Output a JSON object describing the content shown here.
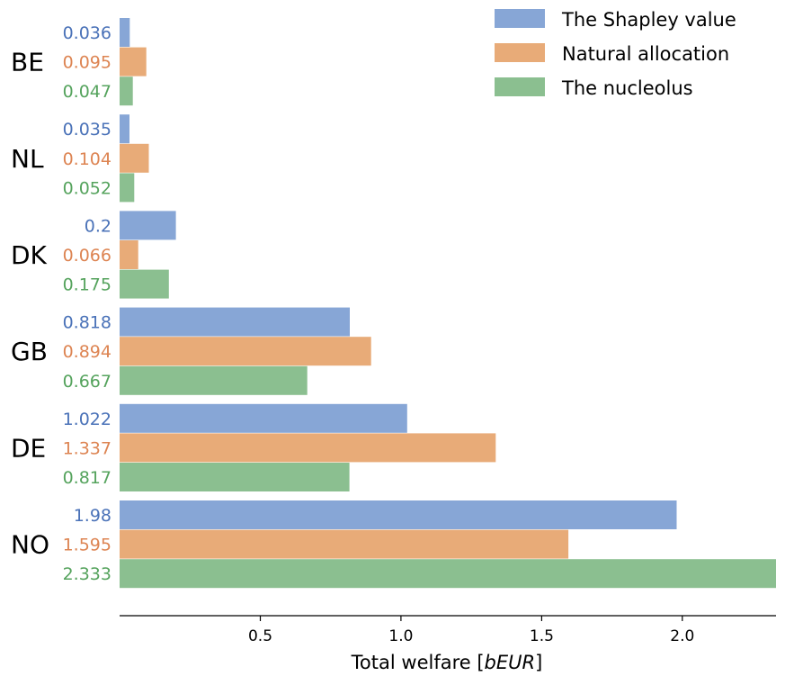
{
  "chart_data": {
    "type": "bar",
    "orientation": "horizontal",
    "categories": [
      "BE",
      "NL",
      "DK",
      "GB",
      "DE",
      "NO"
    ],
    "series": [
      {
        "name": "The Shapley value",
        "color": "#87a6d6",
        "label_color": "#4a72b8",
        "values": [
          0.036,
          0.035,
          0.2,
          0.818,
          1.022,
          1.98
        ],
        "labels": [
          "0.036",
          "0.035",
          "0.2",
          "0.818",
          "1.022",
          "1.98"
        ]
      },
      {
        "name": "Natural allocation",
        "color": "#e8ab78",
        "label_color": "#dd8452",
        "values": [
          0.095,
          0.104,
          0.066,
          0.894,
          1.337,
          1.595
        ],
        "labels": [
          "0.095",
          "0.104",
          "0.066",
          "0.894",
          "1.337",
          "1.595"
        ]
      },
      {
        "name": "The nucleolus",
        "color": "#8bbf90",
        "label_color": "#55a35d",
        "values": [
          0.047,
          0.052,
          0.175,
          0.667,
          0.817,
          2.333
        ],
        "labels": [
          "0.047",
          "0.052",
          "0.175",
          "0.667",
          "0.817",
          "2.333"
        ]
      }
    ],
    "xlim": [
      0,
      2.333
    ],
    "xticks": [
      0.5,
      1.0,
      1.5,
      2.0
    ],
    "xtick_labels": [
      "0.5",
      "1.0",
      "1.5",
      "2.0"
    ],
    "xlabel": {
      "prefix": "Total welfare [",
      "italic": "bEUR",
      "suffix": "]"
    },
    "ylabel": "",
    "title": "",
    "legend_position": "top-right",
    "grid": false
  }
}
